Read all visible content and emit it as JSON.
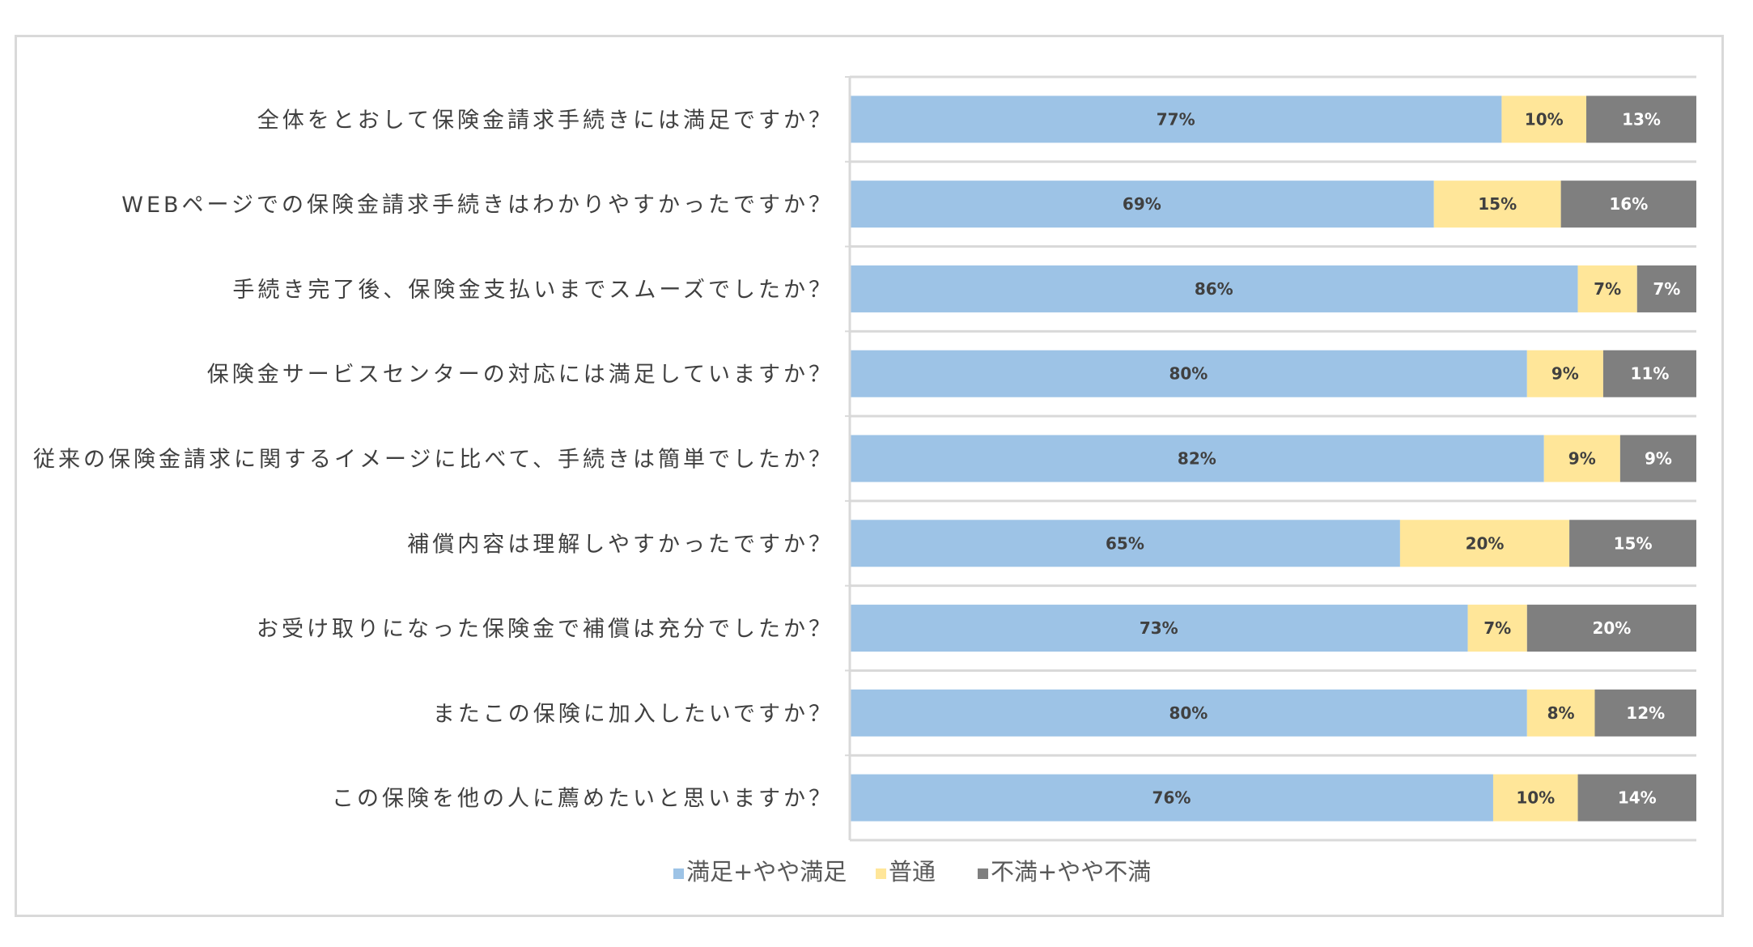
{
  "colors": {
    "satisfied": "#9dc3e6",
    "neutral": "#ffe699",
    "dissatisfied": "#7f7f7f",
    "satisfied_text": "#404040",
    "neutral_text": "#404040",
    "dissatisfied_text": "#ffffff",
    "axis": "#d9d9d9"
  },
  "chart_data": {
    "type": "bar",
    "orientation": "horizontal",
    "stacked": "100%",
    "grid": false,
    "legend_position": "bottom",
    "title": "",
    "xlabel": "",
    "ylabel": "",
    "xlim": [
      0,
      100
    ],
    "categories": [
      "全体をとおして保険金請求手続きには満足ですか？",
      "WEBページでの保険金請求手続きはわかりやすかったですか？",
      "手続き完了後、保険金支払いまでスムーズでしたか？",
      "保険金サービスセンターの対応には満足していますか？",
      "従来の保険金請求に関するイメージに比べて、手続きは簡単でしたか？",
      "補償内容は理解しやすかったですか？",
      "お受け取りになった保険金で補償は充分でしたか？",
      "またこの保険に加入したいですか？",
      "この保険を他の人に薦めたいと思いますか？"
    ],
    "series": [
      {
        "name": "満足+やや満足",
        "color_key": "satisfied",
        "values": [
          77,
          69,
          86,
          80,
          82,
          65,
          73,
          80,
          76
        ],
        "labels": [
          "77%",
          "69%",
          "86%",
          "80%",
          "82%",
          "65%",
          "73%",
          "80%",
          "76%"
        ]
      },
      {
        "name": "普通",
        "color_key": "neutral",
        "values": [
          10,
          15,
          7,
          9,
          9,
          20,
          7,
          8,
          10
        ],
        "labels": [
          "10%",
          "15%",
          "7%",
          "9%",
          "9%",
          "20%",
          "7%",
          "8%",
          "10%"
        ]
      },
      {
        "name": "不満+やや不満",
        "color_key": "dissatisfied",
        "values": [
          13,
          16,
          7,
          11,
          9,
          15,
          20,
          12,
          14
        ],
        "labels": [
          "13%",
          "16%",
          "7%",
          "11%",
          "9%",
          "15%",
          "20%",
          "12%",
          "14%"
        ]
      }
    ]
  }
}
